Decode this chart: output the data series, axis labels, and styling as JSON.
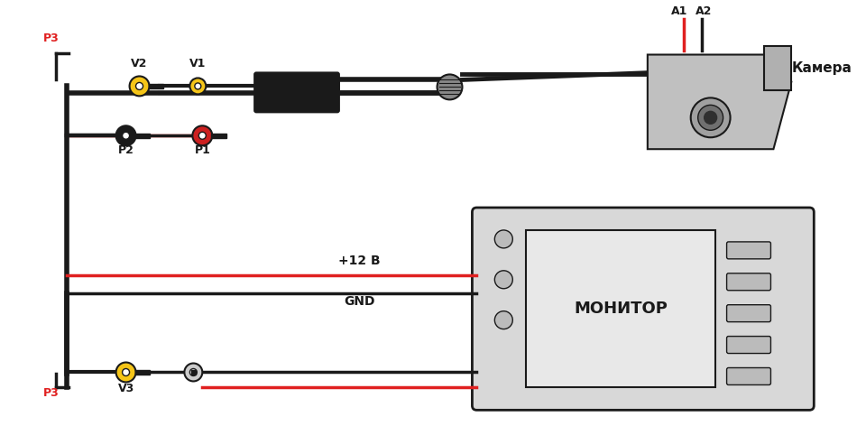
{
  "bg_color": "#ffffff",
  "line_color": "#1a1a1a",
  "red_color": "#e02020",
  "yellow_color": "#f5c518",
  "gray_color": "#b0b0b0",
  "dark_gray": "#555555",
  "label_color": "#1a1a1a",
  "red_label": "#e02020",
  "labels": {
    "P3_top": "P3",
    "P3_bot": "P3",
    "V1": "V1",
    "V2": "V2",
    "V1b": "V1",
    "P1": "P1",
    "P2": "P2",
    "V3": "V3",
    "A1": "A1",
    "A2": "A2",
    "camera": "Камера",
    "monitor": "МОНИТОР",
    "plus12": "+12 В",
    "gnd": "GND"
  },
  "figsize": [
    9.6,
    4.72
  ],
  "dpi": 100
}
